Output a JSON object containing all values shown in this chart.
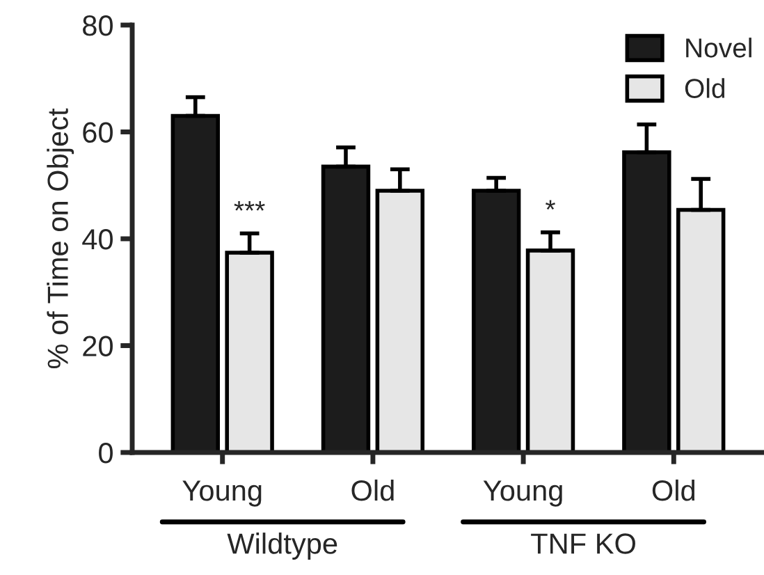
{
  "chart_data": {
    "type": "bar",
    "ylabel": "% of Time on Object",
    "categories": [
      "Young",
      "Old",
      "Young",
      "Old"
    ],
    "series": [
      {
        "name": "Novel",
        "color": "#1c1c1c",
        "values": [
          63.0,
          53.5,
          49.0,
          56.2
        ],
        "errors": [
          [
            63.0,
            66.5
          ],
          [
            53.5,
            57.1
          ],
          [
            49.0,
            51.4
          ],
          [
            56.2,
            61.4
          ]
        ]
      },
      {
        "name": "Old",
        "color": "#e6e6e6",
        "values": [
          37.4,
          49.0,
          37.8,
          45.4
        ],
        "errors": [
          [
            37.4,
            41.0
          ],
          [
            49.0,
            53.0
          ],
          [
            37.8,
            41.2
          ],
          [
            45.4,
            51.2
          ]
        ]
      }
    ],
    "ylim": [
      0,
      80
    ],
    "yticks": [
      0,
      20,
      40,
      60,
      80
    ],
    "grid": false,
    "legend": "top right",
    "annotations": [
      "***",
      "*",
      "Wildtype",
      "TNF KO"
    ]
  }
}
